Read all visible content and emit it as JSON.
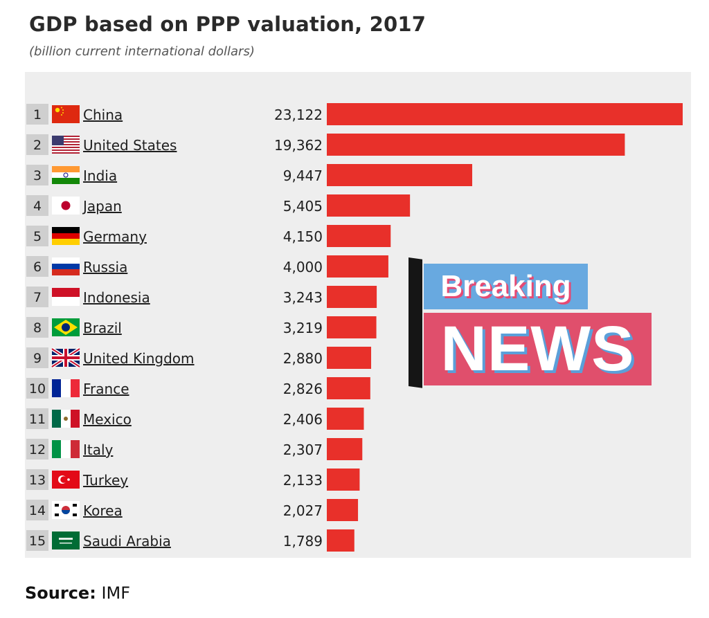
{
  "chart_data": {
    "type": "bar",
    "orientation": "horizontal",
    "title": "GDP based on PPP valuation, 2017",
    "subtitle": "(billion current international dollars)",
    "xlim": [
      0,
      23122
    ],
    "grid": false,
    "bar_color": "#e8302a",
    "rank_box_color": "#cfcfcf",
    "panel_color": "#eeeeee",
    "rows": [
      {
        "rank": "1",
        "country": "China",
        "value": 23122,
        "value_label": "23,122",
        "flag": "china-flag"
      },
      {
        "rank": "2",
        "country": "United States",
        "value": 19362,
        "value_label": "19,362",
        "flag": "us-flag"
      },
      {
        "rank": "3",
        "country": "India",
        "value": 9447,
        "value_label": "9,447",
        "flag": "india-flag"
      },
      {
        "rank": "4",
        "country": "Japan",
        "value": 5405,
        "value_label": "5,405",
        "flag": "japan-flag"
      },
      {
        "rank": "5",
        "country": "Germany",
        "value": 4150,
        "value_label": "4,150",
        "flag": "germany-flag"
      },
      {
        "rank": "6",
        "country": "Russia",
        "value": 4000,
        "value_label": "4,000",
        "flag": "russia-flag"
      },
      {
        "rank": "7",
        "country": "Indonesia",
        "value": 3243,
        "value_label": "3,243",
        "flag": "indonesia-flag"
      },
      {
        "rank": "8",
        "country": "Brazil",
        "value": 3219,
        "value_label": "3,219",
        "flag": "brazil-flag"
      },
      {
        "rank": "9",
        "country": "United Kingdom",
        "value": 2880,
        "value_label": "2,880",
        "flag": "uk-flag"
      },
      {
        "rank": "10",
        "country": "France",
        "value": 2826,
        "value_label": "2,826",
        "flag": "france-flag"
      },
      {
        "rank": "11",
        "country": "Mexico",
        "value": 2406,
        "value_label": "2,406",
        "flag": "mexico-flag"
      },
      {
        "rank": "12",
        "country": "Italy",
        "value": 2307,
        "value_label": "2,307",
        "flag": "italy-flag"
      },
      {
        "rank": "13",
        "country": "Turkey",
        "value": 2133,
        "value_label": "2,133",
        "flag": "turkey-flag"
      },
      {
        "rank": "14",
        "country": "Korea",
        "value": 2027,
        "value_label": "2,027",
        "flag": "korea-flag"
      },
      {
        "rank": "15",
        "country": "Saudi Arabia",
        "value": 1789,
        "value_label": "1,789",
        "flag": "saudi-arabia-flag"
      }
    ]
  },
  "source": {
    "label": "Source:",
    "value": "IMF"
  },
  "overlay": {
    "line1": "Breaking",
    "line2": "NEWS",
    "colors": {
      "top_bg": "#68a9e0",
      "bottom_bg": "#e04f6c",
      "bar": "#151515"
    }
  }
}
